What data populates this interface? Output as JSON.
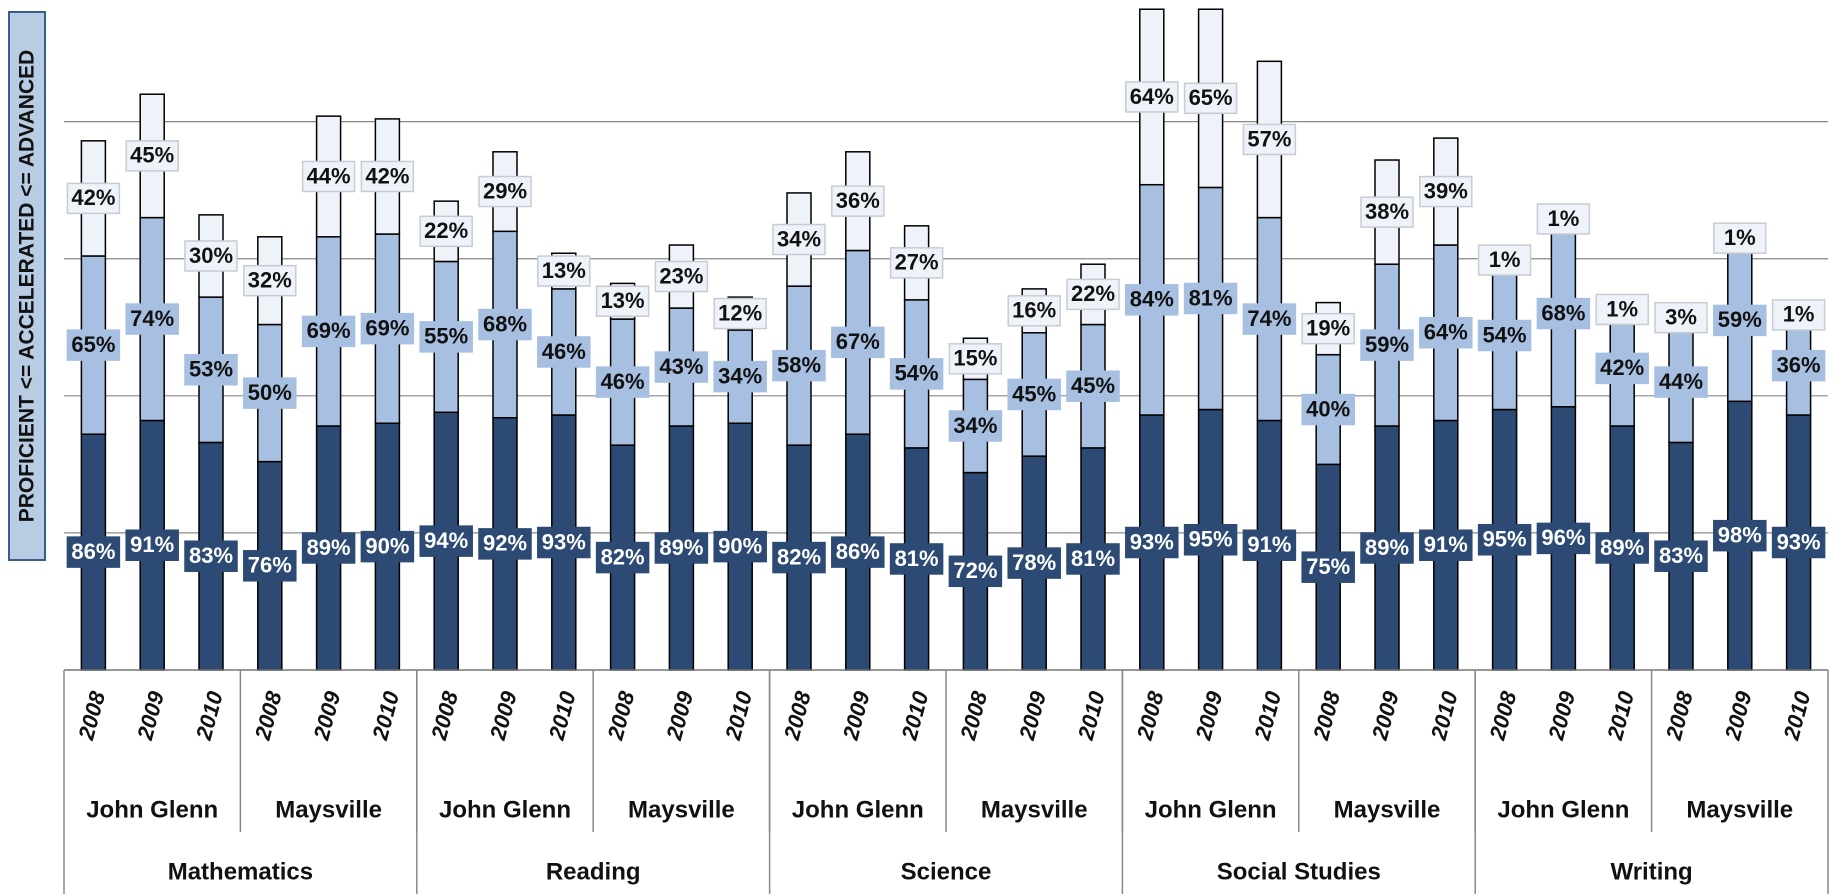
{
  "chart_data": {
    "type": "stacked_bar",
    "y_axis_label": "PROFICIENT <= ACCELERATED <= ADVANCED",
    "categories": [
      "2008",
      "2009",
      "2010",
      "2008",
      "2009",
      "2010",
      "2008",
      "2009",
      "2010",
      "2008",
      "2009",
      "2010",
      "2008",
      "2009",
      "2010",
      "2008",
      "2009",
      "2010",
      "2008",
      "2009",
      "2010",
      "2008",
      "2009",
      "2010",
      "2008",
      "2009",
      "2010",
      "2008",
      "2009",
      "2010"
    ],
    "school_groups": [
      "John Glenn",
      "Maysville",
      "John Glenn",
      "Maysville",
      "John Glenn",
      "Maysville",
      "John Glenn",
      "Maysville",
      "John Glenn",
      "Maysville"
    ],
    "subject_groups": [
      "Mathematics",
      "Reading",
      "Science",
      "Social Studies",
      "Writing"
    ],
    "ylim": [
      0,
      244
    ],
    "yticks": [
      50,
      100,
      150,
      200
    ],
    "grid": true,
    "series": [
      {
        "color": "#2c4a73",
        "label_bg": "#2c4a73",
        "label_color": "#ffffff",
        "values": [
          86,
          91,
          83,
          76,
          89,
          90,
          94,
          92,
          93,
          82,
          89,
          90,
          82,
          86,
          81,
          72,
          78,
          81,
          93,
          95,
          91,
          75,
          89,
          91,
          95,
          96,
          89,
          83,
          98,
          93
        ],
        "value_labels": [
          "86%",
          "91%",
          "83%",
          "76%",
          "89%",
          "90%",
          "94%",
          "92%",
          "93%",
          "82%",
          "89%",
          "90%",
          "82%",
          "86%",
          "81%",
          "72%",
          "78%",
          "81%",
          "93%",
          "95%",
          "91%",
          "75%",
          "89%",
          "91%",
          "95%",
          "96%",
          "89%",
          "83%",
          "98%",
          "93%"
        ]
      },
      {
        "color": "#a7bfe0",
        "label_bg": "#a7bfe0",
        "label_color": "#111111",
        "values": [
          65,
          74,
          53,
          50,
          69,
          69,
          55,
          68,
          46,
          46,
          43,
          34,
          58,
          67,
          54,
          34,
          45,
          45,
          84,
          81,
          74,
          40,
          59,
          64,
          54,
          68,
          42,
          44,
          59,
          36
        ],
        "value_labels": [
          "65%",
          "74%",
          "53%",
          "50%",
          "69%",
          "69%",
          "55%",
          "68%",
          "46%",
          "46%",
          "43%",
          "34%",
          "58%",
          "67%",
          "54%",
          "34%",
          "45%",
          "45%",
          "84%",
          "81%",
          "74%",
          "40%",
          "59%",
          "64%",
          "54%",
          "68%",
          "42%",
          "44%",
          "59%",
          "36%"
        ]
      },
      {
        "color": "#eef2f9",
        "label_bg": "#eef2f9",
        "label_color": "#111111",
        "values": [
          42,
          45,
          30,
          32,
          44,
          42,
          22,
          29,
          13,
          13,
          23,
          12,
          34,
          36,
          27,
          15,
          16,
          22,
          64,
          65,
          57,
          19,
          38,
          39,
          1,
          1,
          1,
          3,
          1,
          1
        ],
        "value_labels": [
          "42%",
          "45%",
          "30%",
          "32%",
          "44%",
          "42%",
          "22%",
          "29%",
          "13%",
          "13%",
          "23%",
          "12%",
          "34%",
          "36%",
          "27%",
          "15%",
          "16%",
          "22%",
          "64%",
          "65%",
          "57%",
          "19%",
          "38%",
          "39%",
          "1%",
          "1%",
          "1%",
          "3%",
          "1%",
          "1%"
        ]
      }
    ]
  }
}
